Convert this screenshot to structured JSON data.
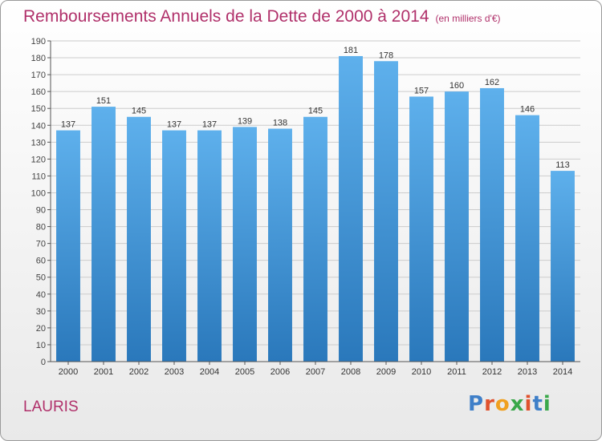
{
  "header": {
    "title": "Remboursements Annuels de la Dette de 2000 à 2014",
    "subtitle": "(en milliers d'€)"
  },
  "footer": {
    "place": "LAURIS",
    "logo": "Proxiti"
  },
  "colors": {
    "title": "#b0306a",
    "bar_top": "#5eb0ec",
    "bar_bottom": "#2a78bb",
    "grid": "#cccccc"
  },
  "chart_data": {
    "type": "bar",
    "title": "Remboursements Annuels de la Dette de 2000 à 2014",
    "xlabel": "",
    "ylabel": "",
    "categories": [
      "2000",
      "2001",
      "2002",
      "2003",
      "2004",
      "2005",
      "2006",
      "2007",
      "2008",
      "2009",
      "2010",
      "2011",
      "2012",
      "2013",
      "2014"
    ],
    "values": [
      137,
      151,
      145,
      137,
      137,
      139,
      138,
      145,
      181,
      178,
      157,
      160,
      162,
      146,
      113
    ],
    "ylim": [
      0,
      190
    ],
    "yticks": [
      0,
      10,
      20,
      30,
      40,
      50,
      60,
      70,
      80,
      90,
      100,
      110,
      120,
      130,
      140,
      150,
      160,
      170,
      180,
      190
    ],
    "grid": true,
    "data_labels": true
  }
}
